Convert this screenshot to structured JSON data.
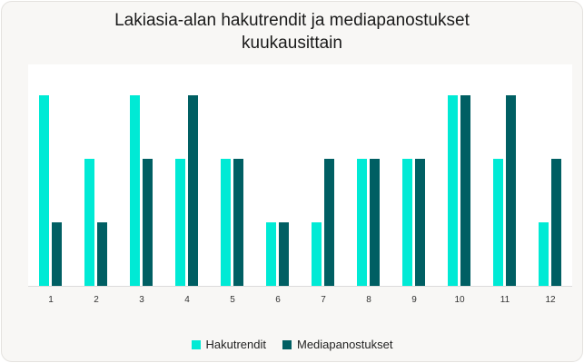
{
  "chart_data": {
    "type": "bar",
    "title": "Lakiasia-alan hakutrendit ja mediapanostukset kuukausittain",
    "title_lines": [
      "Lakiasia-alan hakutrendit ja mediapanostukset",
      "kuukausittain"
    ],
    "categories": [
      "1",
      "2",
      "3",
      "4",
      "5",
      "6",
      "7",
      "8",
      "9",
      "10",
      "11",
      "12"
    ],
    "series": [
      {
        "name": "Hakutrendit",
        "color": "#00ead5",
        "values": [
          3,
          2,
          3,
          2,
          2,
          1,
          1,
          2,
          2,
          3,
          2,
          1
        ]
      },
      {
        "name": "Mediapanostukset",
        "color": "#005f63",
        "values": [
          1,
          1,
          2,
          3,
          2,
          1,
          2,
          2,
          2,
          3,
          3,
          2
        ]
      }
    ],
    "xlabel": "",
    "ylabel": "",
    "ylim": [
      0,
      3.5
    ],
    "grid": false,
    "legend": "bottom-center"
  }
}
